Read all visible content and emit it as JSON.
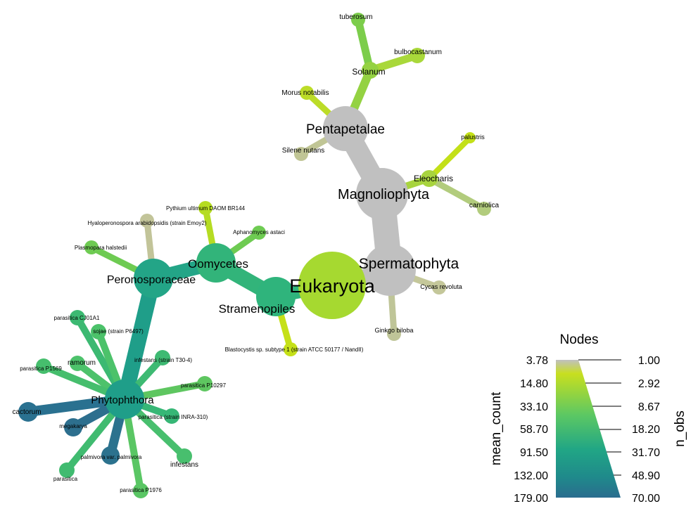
{
  "colors": {
    "background": "#ffffff",
    "gray_node": "#c0c0c0",
    "scale_stops": [
      "#bdbdbd",
      "#c8df1f",
      "#5cc863",
      "#21a685",
      "#1f8a8b",
      "#2a6d8e"
    ]
  },
  "nodes": [
    {
      "id": "eukaryota",
      "label": "Eukaryota",
      "color": "#a6d930"
    },
    {
      "id": "spermatophyta",
      "label": "Spermatophyta",
      "color": "#c0c0c0"
    },
    {
      "id": "magnoliophyta",
      "label": "Magnoliophyta",
      "color": "#c0c0c0"
    },
    {
      "id": "pentapetalae",
      "label": "Pentapetalae",
      "color": "#c0c0c0"
    },
    {
      "id": "solanum",
      "label": "Solanum",
      "color": "#94d242"
    },
    {
      "id": "tuberosum",
      "label": "tuberosum",
      "color": "#7ccd4b"
    },
    {
      "id": "bulbocastanum",
      "label": "bulbocastanum",
      "color": "#a9d83a"
    },
    {
      "id": "morus",
      "label": "Morus notabilis",
      "color": "#bcdc28"
    },
    {
      "id": "silene",
      "label": "Silene nutans",
      "color": "#c0c595"
    },
    {
      "id": "eleocharis",
      "label": "Eleocharis",
      "color": "#a8d43e"
    },
    {
      "id": "palustris",
      "label": "palustris",
      "color": "#c3e018"
    },
    {
      "id": "carniolica",
      "label": "carniolica",
      "color": "#b2cc7d"
    },
    {
      "id": "cycas",
      "label": "Cycas revoluta",
      "color": "#c4c79a"
    },
    {
      "id": "ginkgo",
      "label": "Ginkgo biloba",
      "color": "#bfc598"
    },
    {
      "id": "stramenopiles",
      "label": "Stramenopiles",
      "color": "#2fb47c"
    },
    {
      "id": "blastocystis",
      "label": "Blastocystis sp. subtype 1 (strain ATCC 50177 / NandII)",
      "color": "#c5e018"
    },
    {
      "id": "oomycetes",
      "label": "Oomycetes",
      "color": "#32b47a"
    },
    {
      "id": "pythium",
      "label": "Pythium ultimum DAOM BR144",
      "color": "#b5dc22"
    },
    {
      "id": "aphanomyces",
      "label": "Aphanomyces astaci",
      "color": "#6ecb52"
    },
    {
      "id": "peronosporaceae",
      "label": "Peronosporaceae",
      "color": "#23a587"
    },
    {
      "id": "hyaloperonospora",
      "label": "Hyaloperonospora arabidopsidis (strain Emoy2)",
      "color": "#c2c499"
    },
    {
      "id": "plasmopara",
      "label": "Plasmopara halstedii",
      "color": "#6ecb52"
    },
    {
      "id": "phytophthora",
      "label": "Phytophthora",
      "color": "#1f9e89"
    },
    {
      "id": "p_cj01a1",
      "label": "parasitica CJ01A1",
      "color": "#3cb972"
    },
    {
      "id": "p_sojae",
      "label": "sojae (strain P6497)",
      "color": "#4cc26a"
    },
    {
      "id": "p_ramorum",
      "label": "ramorum",
      "color": "#4dc26b"
    },
    {
      "id": "p_infestans_t30",
      "label": "infestans (strain T30-4)",
      "color": "#3eba73"
    },
    {
      "id": "p_p1569",
      "label": "parasitica P1569",
      "color": "#46be6d"
    },
    {
      "id": "p_p10297",
      "label": "parasitica P10297",
      "color": "#5ec660"
    },
    {
      "id": "p_cactorum",
      "label": "cactorum",
      "color": "#2a7190"
    },
    {
      "id": "p_megakarya",
      "label": "megakarya",
      "color": "#2d6f8e"
    },
    {
      "id": "p_inra310",
      "label": "parasitica (strain INRA-310)",
      "color": "#37b776"
    },
    {
      "id": "p_palmivora",
      "label": "palmivora var. palmivora",
      "color": "#2c728e"
    },
    {
      "id": "p_infestans",
      "label": "infestans",
      "color": "#48bf6e"
    },
    {
      "id": "p_parasitica",
      "label": "parasitica",
      "color": "#40bb70"
    },
    {
      "id": "p_p1976",
      "label": "parasitica P1976",
      "color": "#5ac664"
    }
  ],
  "legend": {
    "title": "Nodes",
    "left_axis_label": "mean_count",
    "right_axis_label": "n_obs",
    "left_ticks": [
      "3.78",
      "14.80",
      "33.10",
      "58.70",
      "91.50",
      "132.00",
      "179.00"
    ],
    "right_ticks": [
      "1.00",
      "2.92",
      "8.67",
      "18.20",
      "31.70",
      "48.90",
      "70.00"
    ]
  }
}
